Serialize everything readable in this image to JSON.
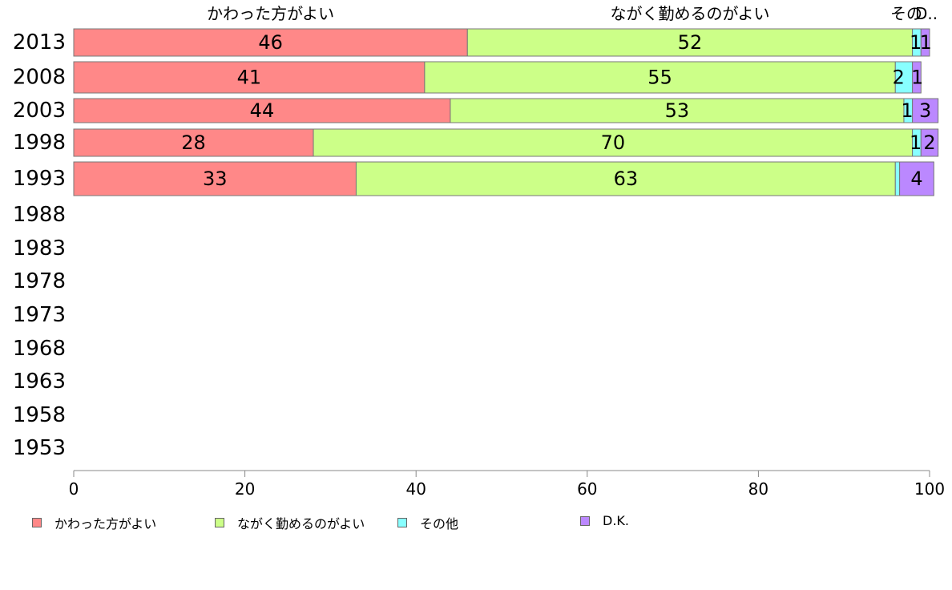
{
  "chart_data": {
    "type": "bar",
    "orientation": "horizontal",
    "stacked": true,
    "categories": [
      "2013",
      "2008",
      "2003",
      "1998",
      "1993",
      "1988",
      "1983",
      "1978",
      "1973",
      "1968",
      "1963",
      "1958",
      "1953"
    ],
    "series": [
      {
        "name": "かわった方がよい",
        "color": "#ff8888",
        "values": [
          46,
          41,
          44,
          28,
          33,
          null,
          null,
          null,
          null,
          null,
          null,
          null,
          null
        ]
      },
      {
        "name": "ながく勤めるのがよい",
        "color": "#ccff88",
        "values": [
          52,
          55,
          53,
          70,
          63,
          null,
          null,
          null,
          null,
          null,
          null,
          null,
          null
        ]
      },
      {
        "name": "その他",
        "color": "#88ffff",
        "values": [
          1,
          2,
          1,
          1,
          0.5,
          null,
          null,
          null,
          null,
          null,
          null,
          null,
          null
        ]
      },
      {
        "name": "D.K.",
        "color": "#bb88ff",
        "values": [
          1,
          1,
          3,
          2,
          4,
          null,
          null,
          null,
          null,
          null,
          null,
          null,
          null
        ]
      }
    ],
    "data_labels": [
      [
        "46",
        "52",
        "1",
        "1"
      ],
      [
        "41",
        "55",
        "2",
        "1"
      ],
      [
        "44",
        "53",
        "1",
        "3"
      ],
      [
        "28",
        "70",
        "1",
        "2"
      ],
      [
        "33",
        "63",
        "",
        "4"
      ]
    ],
    "top_labels": [
      "かわった方がよい",
      "ながく勤めるのがよい",
      "その",
      "D.."
    ],
    "xlim": [
      0,
      100
    ],
    "xticks": [
      "0",
      "20",
      "40",
      "60",
      "80",
      "100"
    ],
    "legend": "bottom",
    "grid": false
  }
}
